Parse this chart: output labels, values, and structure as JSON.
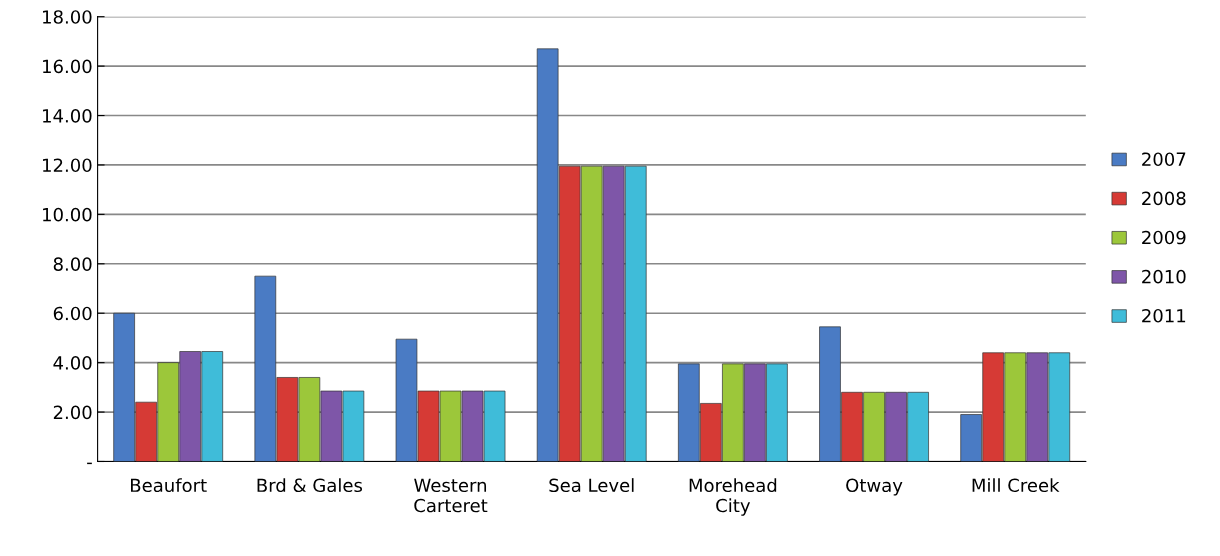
{
  "chart_data": {
    "type": "bar",
    "categories": [
      "Beaufort",
      "Brd & Gales",
      "Western\nCarteret",
      "Sea Level",
      "Morehead\nCity",
      "Otway",
      "Mill Creek"
    ],
    "series": [
      {
        "name": "2007",
        "color": "#4a7bc4",
        "values": [
          6.0,
          7.5,
          4.95,
          16.7,
          3.95,
          5.45,
          1.9
        ]
      },
      {
        "name": "2008",
        "color": "#d63a35",
        "values": [
          2.4,
          3.4,
          2.85,
          11.95,
          2.35,
          2.8,
          4.4
        ]
      },
      {
        "name": "2009",
        "color": "#9cc73a",
        "values": [
          4.0,
          3.4,
          2.85,
          11.95,
          3.95,
          2.8,
          4.4
        ]
      },
      {
        "name": "2010",
        "color": "#7e56a8",
        "values": [
          4.45,
          2.85,
          2.85,
          11.95,
          3.95,
          2.8,
          4.4
        ]
      },
      {
        "name": "2011",
        "color": "#3fbcd9",
        "values": [
          4.45,
          2.85,
          2.85,
          11.95,
          3.95,
          2.8,
          4.4
        ]
      }
    ],
    "ylim": [
      0,
      18
    ],
    "yticks": [
      {
        "value": 0,
        "label": "-"
      },
      {
        "value": 2,
        "label": "2.00"
      },
      {
        "value": 4,
        "label": "4.00"
      },
      {
        "value": 6,
        "label": "6.00"
      },
      {
        "value": 8,
        "label": "8.00"
      },
      {
        "value": 10,
        "label": "10.00"
      },
      {
        "value": 12,
        "label": "12.00"
      },
      {
        "value": 14,
        "label": "14.00"
      },
      {
        "value": 16,
        "label": "16.00"
      },
      {
        "value": 18,
        "label": "18.00"
      }
    ],
    "grid": "y",
    "legend": "right"
  }
}
